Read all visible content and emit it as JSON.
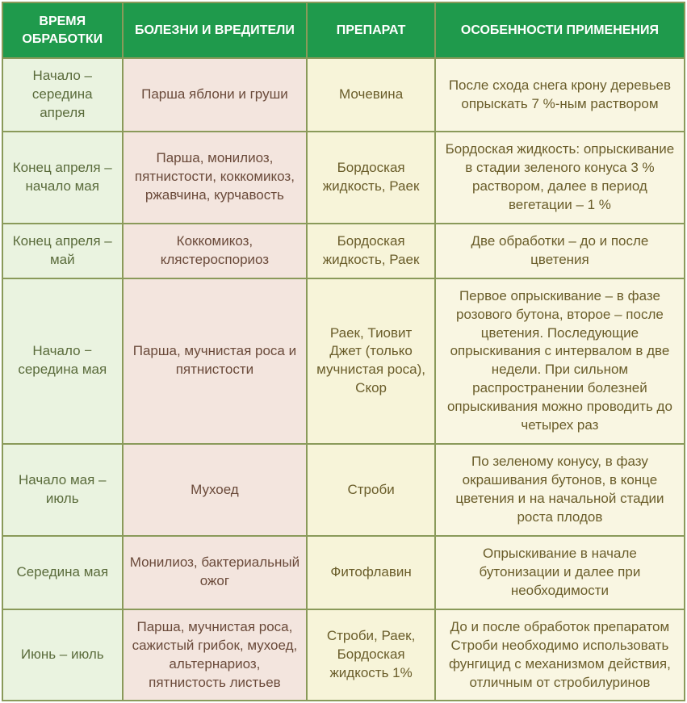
{
  "table": {
    "headers": [
      "ВРЕМЯ ОБРАБОТКИ",
      "БОЛЕЗНИ И ВРЕДИТЕЛИ",
      "ПРЕПАРАТ",
      "ОСОБЕННОСТИ ПРИМЕНЕНИЯ"
    ],
    "column_bg_colors": [
      "#eaf3e0",
      "#f3e5de",
      "#f7f4d9",
      "#f9f6e2"
    ],
    "header_bg": "#1f9a4c",
    "header_color": "#ffffff",
    "border_color": "#8a9a5a",
    "rows": [
      {
        "time": "Начало – середина апреля",
        "disease": "Парша яблони и груши",
        "drug": "Мочевина",
        "notes": "После схода снега крону деревьев опрыскать 7 %-ным раствором"
      },
      {
        "time": "Конец апреля – начало мая",
        "disease": "Парша, монилиоз, пятнистости, коккомикоз, ржавчина, курчавость",
        "drug": "Бордоская жидкость, Раек",
        "notes": "Бордоская жидкость: опрыскивание в стадии зеленого конуса 3 % раствором, далее в период вегетации – 1 %"
      },
      {
        "time": "Конец апреля – май",
        "disease": "Коккомикоз, клястероспориоз",
        "drug": "Бордоская жидкость, Раек",
        "notes": "Две обработки – до и после цветения"
      },
      {
        "time": "Начало − середина мая",
        "disease": "Парша, мучнистая роса и пятнистости",
        "drug": "Раек, Тиовит Джет (только мучнистая роса), Скор",
        "notes": "Первое опрыскивание – в фазе розового бутона, второе – после цветения. Последующие опрыскивания с интервалом в две недели. При сильном распространении болезней опрыскивания можно проводить до четырех раз"
      },
      {
        "time": "Начало мая – июль",
        "disease": "Мухоед",
        "drug": "Строби",
        "notes": "По зеленому конусу, в фазу окрашивания бутонов, в конце цветения и на начальной стадии роста  плодов"
      },
      {
        "time": "Середина мая",
        "disease": "Монилиоз, бактериальный ожог",
        "drug": "Фитофлавин",
        "notes": "Опрыскивание в начале бутонизации и далее при необходимости"
      },
      {
        "time": "Июнь – июль",
        "disease": "Парша, мучнистая роса, сажистый грибок, мухоед, альтернариоз, пятнистость листьев",
        "drug": "Строби, Раек, Бордоская жидкость 1%",
        "notes": "До и после обработок препаратом Строби необходимо использовать фунгицид с механизмом действия, отличным от стробилуринов"
      }
    ]
  }
}
